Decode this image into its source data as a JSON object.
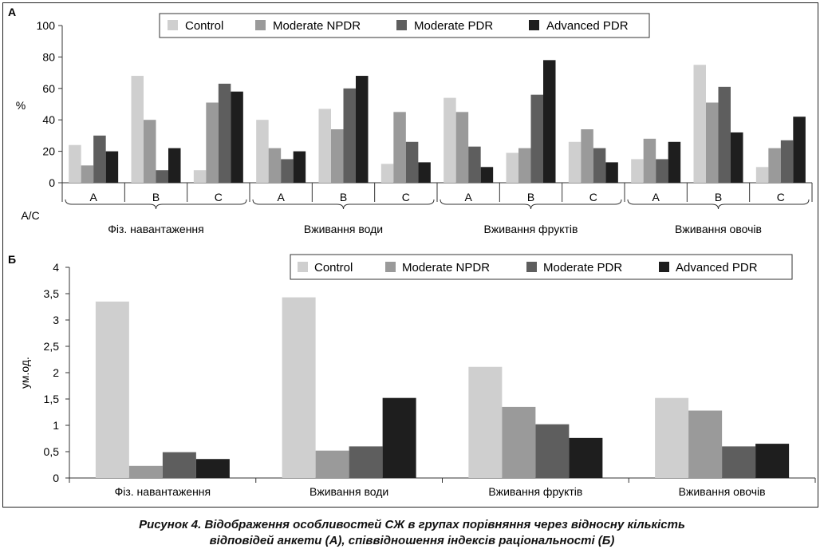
{
  "colors": {
    "control": "#cfcfcf",
    "moderate_npdr": "#9a9a9a",
    "moderate_pdr": "#5e5e5e",
    "advanced_pdr": "#1e1e1e"
  },
  "chart_data": [
    {
      "panel": "А",
      "type": "bar",
      "ylabel": "%",
      "ylim": [
        0,
        100
      ],
      "yticks": [
        "0",
        "20",
        "40",
        "60",
        "80",
        "100"
      ],
      "category_axis_label": "A/C",
      "legend": [
        "Control",
        "Moderate NPDR",
        "Moderate PDR",
        "Advanced PDR"
      ],
      "legend_position": "top",
      "groups": [
        {
          "name": "Фіз. навантаження",
          "categories": [
            "A",
            "B",
            "C"
          ],
          "series": [
            {
              "name": "Control",
              "values": [
                24,
                68,
                8
              ]
            },
            {
              "name": "Moderate NPDR",
              "values": [
                11,
                40,
                51
              ]
            },
            {
              "name": "Moderate PDR",
              "values": [
                30,
                8,
                63
              ]
            },
            {
              "name": "Advanced PDR",
              "values": [
                20,
                22,
                58
              ]
            }
          ]
        },
        {
          "name": "Вживання води",
          "categories": [
            "A",
            "B",
            "C"
          ],
          "series": [
            {
              "name": "Control",
              "values": [
                40,
                47,
                12
              ]
            },
            {
              "name": "Moderate NPDR",
              "values": [
                22,
                34,
                45
              ]
            },
            {
              "name": "Moderate PDR",
              "values": [
                15,
                60,
                26
              ]
            },
            {
              "name": "Advanced PDR",
              "values": [
                20,
                68,
                13
              ]
            }
          ]
        },
        {
          "name": "Вживання фруктів",
          "categories": [
            "A",
            "B",
            "C"
          ],
          "series": [
            {
              "name": "Control",
              "values": [
                54,
                19,
                26
              ]
            },
            {
              "name": "Moderate NPDR",
              "values": [
                45,
                22,
                34
              ]
            },
            {
              "name": "Moderate PDR",
              "values": [
                23,
                56,
                22
              ]
            },
            {
              "name": "Advanced PDR",
              "values": [
                10,
                78,
                13
              ]
            }
          ]
        },
        {
          "name": "Вживання овочів",
          "categories": [
            "A",
            "B",
            "C"
          ],
          "series": [
            {
              "name": "Control",
              "values": [
                15,
                75,
                10
              ]
            },
            {
              "name": "Moderate NPDR",
              "values": [
                28,
                51,
                22
              ]
            },
            {
              "name": "Moderate PDR",
              "values": [
                15,
                61,
                27
              ]
            },
            {
              "name": "Advanced PDR",
              "values": [
                26,
                32,
                42
              ]
            }
          ]
        }
      ]
    },
    {
      "panel": "Б",
      "type": "bar",
      "ylabel": "ум.од.",
      "ylim": [
        0,
        4
      ],
      "yticks": [
        "0",
        "0,5",
        "1",
        "1,5",
        "2",
        "2,5",
        "3",
        "3,5",
        "4"
      ],
      "legend": [
        "Control",
        "Moderate NPDR",
        "Moderate PDR",
        "Advanced PDR"
      ],
      "legend_position": "top-right",
      "categories": [
        "Фіз. навантаження",
        "Вживання води",
        "Вживання фруктів",
        "Вживання овочів"
      ],
      "series": [
        {
          "name": "Control",
          "values": [
            3.35,
            3.43,
            2.11,
            1.52
          ]
        },
        {
          "name": "Moderate NPDR",
          "values": [
            0.23,
            0.52,
            1.35,
            1.28
          ]
        },
        {
          "name": "Moderate PDR",
          "values": [
            0.49,
            0.6,
            1.02,
            0.6
          ]
        },
        {
          "name": "Advanced PDR",
          "values": [
            0.36,
            1.52,
            0.76,
            0.65
          ]
        }
      ]
    }
  ],
  "caption": {
    "line1": "Рисунок 4.  Відображення особливостей СЖ в групах порівняння через відносну кількість",
    "line2": "відповідей анкети (А), співвідношення індексів раціональності (Б)"
  }
}
